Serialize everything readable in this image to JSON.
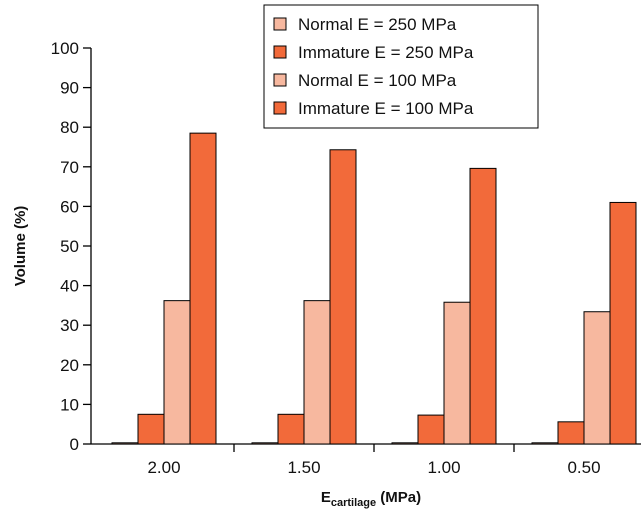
{
  "chart_data": {
    "type": "bar",
    "title": "",
    "xlabel_main": "E",
    "xlabel_sub": "cartilage",
    "xlabel_unit": " (MPa)",
    "ylabel": "Volume (%)",
    "ylim": [
      0,
      100
    ],
    "yticks": [
      "0",
      "10",
      "20",
      "30",
      "40",
      "50",
      "60",
      "70",
      "80",
      "90",
      "100"
    ],
    "categories": [
      "2.00",
      "1.50",
      "1.00",
      "0.50"
    ],
    "legend_position": "top-right",
    "series": [
      {
        "name": "Normal E = 250 MPa",
        "color": "#f7b89f",
        "values": [
          0.3,
          0.3,
          0.3,
          0.3
        ]
      },
      {
        "name": "Immature E = 250 MPa",
        "color": "#f26a3a",
        "values": [
          7.5,
          7.5,
          7.3,
          5.6
        ]
      },
      {
        "name": "Normal E = 100 MPa",
        "color": "#f7b89f",
        "values": [
          36.2,
          36.2,
          35.8,
          33.4
        ]
      },
      {
        "name": "Immature E = 100 MPa",
        "color": "#f26a3a",
        "values": [
          78.5,
          74.3,
          69.6,
          61.0
        ]
      }
    ]
  }
}
